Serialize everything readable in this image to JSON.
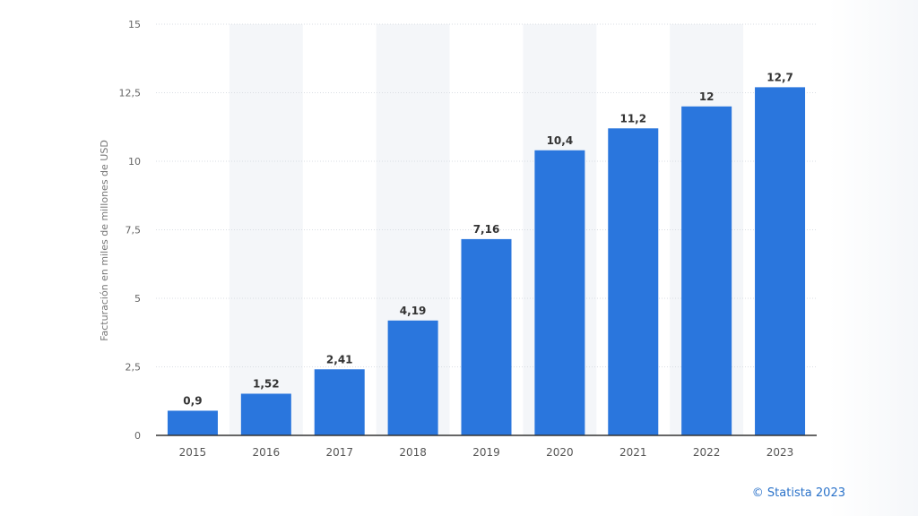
{
  "chart_data": {
    "type": "bar",
    "categories": [
      "2015",
      "2016",
      "2017",
      "2018",
      "2019",
      "2020",
      "2021",
      "2022",
      "2023"
    ],
    "values": [
      0.9,
      1.52,
      2.41,
      4.19,
      7.16,
      10.4,
      11.2,
      12,
      12.7
    ],
    "value_labels": [
      "0,9",
      "1,52",
      "2,41",
      "4,19",
      "7,16",
      "10,4",
      "11,2",
      "12",
      "12,7"
    ],
    "ylabel": "Facturación en miles de millones de USD",
    "xlabel": "",
    "title": "",
    "ylim": [
      0,
      15
    ],
    "yticks": [
      0,
      2.5,
      5,
      7.5,
      10,
      12.5,
      15
    ],
    "ytick_labels": [
      "0",
      "2,5",
      "5",
      "7,5",
      "10",
      "12,5",
      "15"
    ],
    "grid": true,
    "bar_color": "#2a76dd"
  },
  "footer": {
    "credit": "© Statista 2023"
  }
}
